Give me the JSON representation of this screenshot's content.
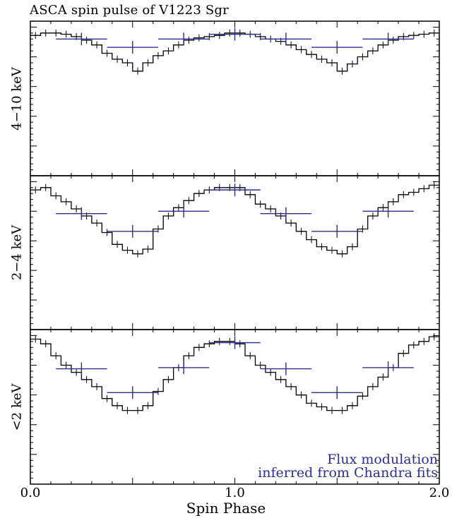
{
  "chart_data": {
    "type": "line",
    "title": "ASCA spin pulse of V1223 Sgr",
    "xlabel": "Spin Phase",
    "xlim": [
      0,
      2
    ],
    "x_ticks": [
      "0.0",
      "1.0",
      "2.0"
    ],
    "colors": {
      "light_curve": "#000000",
      "model": "#2e2e8f"
    },
    "annotation": [
      "Flux modulation",
      "inferred from Chandra fits"
    ],
    "panels": [
      {
        "ylabel": "4−10 keV",
        "ylim": [
          0,
          1.3
        ],
        "light_curve": {
          "x": [
            0.025,
            0.075,
            0.125,
            0.175,
            0.225,
            0.275,
            0.325,
            0.375,
            0.425,
            0.475,
            0.525,
            0.575,
            0.625,
            0.675,
            0.725,
            0.775,
            0.825,
            0.875,
            0.925,
            0.975,
            1.025,
            1.075,
            1.125,
            1.175,
            1.225,
            1.275,
            1.325,
            1.375,
            1.425,
            1.475,
            1.525,
            1.575,
            1.625,
            1.675,
            1.725,
            1.775,
            1.825,
            1.875,
            1.925,
            1.975
          ],
          "y": [
            1.18,
            1.2,
            1.2,
            1.19,
            1.17,
            1.14,
            1.1,
            1.03,
            0.98,
            0.95,
            0.88,
            0.95,
            1.01,
            1.05,
            1.1,
            1.14,
            1.16,
            1.17,
            1.18,
            1.2,
            1.2,
            1.19,
            1.17,
            1.15,
            1.13,
            1.1,
            1.06,
            1.02,
            0.98,
            0.95,
            0.88,
            0.94,
            1.0,
            1.05,
            1.1,
            1.14,
            1.17,
            1.18,
            1.19,
            1.2
          ]
        },
        "model": {
          "x": [
            0.25,
            0.5,
            0.75,
            1.0,
            1.25,
            1.5,
            1.75
          ],
          "y": [
            1.15,
            1.08,
            1.15,
            1.19,
            1.15,
            1.08,
            1.15
          ],
          "xerr": 0.125
        }
      },
      {
        "ylabel": "2−4 keV",
        "ylim": [
          0,
          1.3
        ],
        "light_curve": {
          "x": [
            0.025,
            0.075,
            0.125,
            0.175,
            0.225,
            0.275,
            0.325,
            0.375,
            0.425,
            0.475,
            0.525,
            0.575,
            0.625,
            0.675,
            0.725,
            0.775,
            0.825,
            0.875,
            0.925,
            0.975,
            1.025,
            1.075,
            1.125,
            1.175,
            1.225,
            1.275,
            1.325,
            1.375,
            1.425,
            1.475,
            1.525,
            1.575,
            1.625,
            1.675,
            1.725,
            1.775,
            1.825,
            1.875,
            1.925,
            1.975
          ],
          "y": [
            1.18,
            1.2,
            1.13,
            1.08,
            1.02,
            0.96,
            0.9,
            0.82,
            0.72,
            0.67,
            0.64,
            0.68,
            0.85,
            0.96,
            1.03,
            1.09,
            1.15,
            1.18,
            1.2,
            1.2,
            1.2,
            1.14,
            1.06,
            1.02,
            0.96,
            0.9,
            0.83,
            0.76,
            0.7,
            0.67,
            0.64,
            0.7,
            0.85,
            0.96,
            1.03,
            1.08,
            1.14,
            1.16,
            1.19,
            1.22
          ]
        },
        "model": {
          "x": [
            0.25,
            0.5,
            0.75,
            1.0,
            1.25,
            1.5,
            1.75
          ],
          "y": [
            0.98,
            0.83,
            1.0,
            1.18,
            0.98,
            0.83,
            1.0
          ],
          "xerr": 0.125
        }
      },
      {
        "ylabel": "<2 keV",
        "ylim": [
          0,
          1.3
        ],
        "light_curve": {
          "x": [
            0.025,
            0.075,
            0.125,
            0.175,
            0.225,
            0.275,
            0.325,
            0.375,
            0.425,
            0.475,
            0.525,
            0.575,
            0.625,
            0.675,
            0.725,
            0.775,
            0.825,
            0.875,
            0.925,
            0.975,
            1.025,
            1.075,
            1.125,
            1.175,
            1.225,
            1.275,
            1.325,
            1.375,
            1.425,
            1.475,
            1.525,
            1.575,
            1.625,
            1.675,
            1.725,
            1.775,
            1.825,
            1.875,
            1.925,
            1.975
          ],
          "y": [
            1.22,
            1.18,
            1.08,
            1.0,
            0.94,
            0.88,
            0.82,
            0.72,
            0.66,
            0.62,
            0.62,
            0.66,
            0.78,
            0.88,
            0.98,
            1.08,
            1.15,
            1.18,
            1.2,
            1.2,
            1.18,
            1.08,
            1.0,
            0.94,
            0.88,
            0.82,
            0.75,
            0.68,
            0.65,
            0.62,
            0.62,
            0.66,
            0.74,
            0.82,
            0.9,
            0.98,
            1.1,
            1.17,
            1.2,
            1.24
          ]
        },
        "model": {
          "x": [
            0.25,
            0.5,
            0.75,
            1.0,
            1.25,
            1.5,
            1.75
          ],
          "y": [
            0.97,
            0.77,
            0.98,
            1.19,
            0.97,
            0.77,
            0.98
          ],
          "xerr": 0.125
        }
      }
    ]
  }
}
